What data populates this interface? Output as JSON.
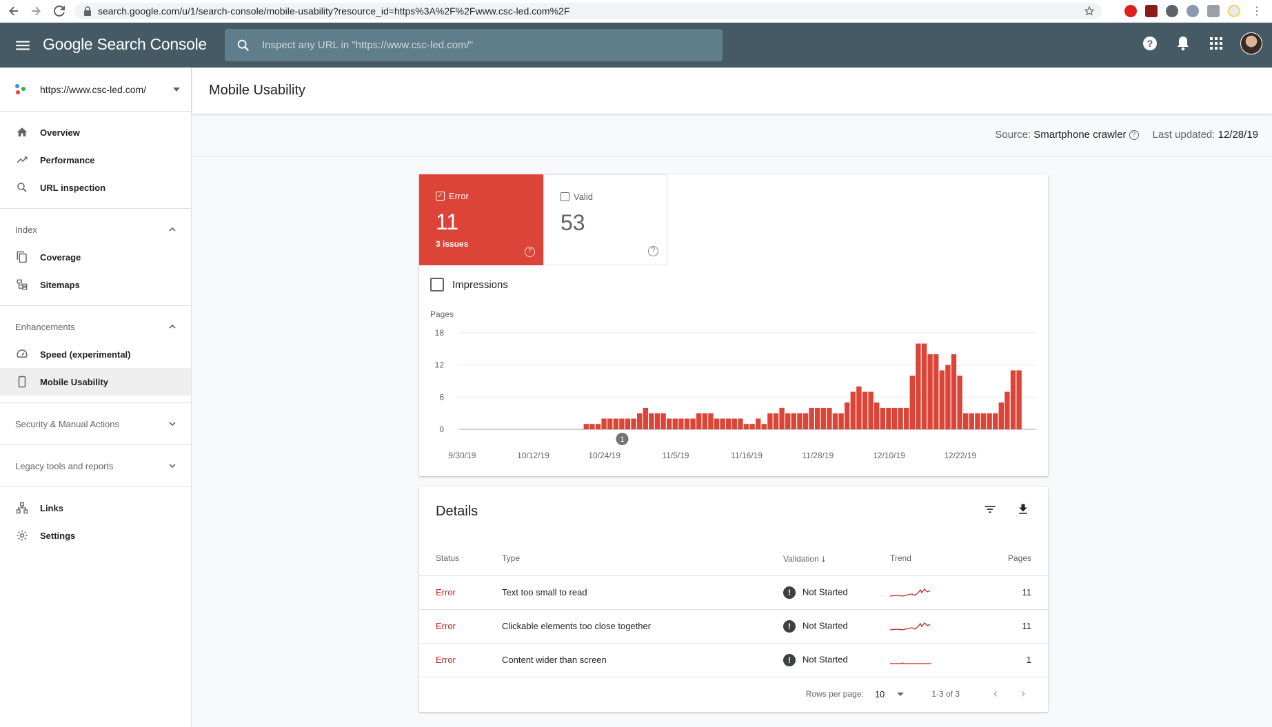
{
  "browser": {
    "url": "search.google.com/u/1/search-console/mobile-usability?resource_id=https%3A%2F%2Fwww.csc-led.com%2F"
  },
  "header": {
    "brand": "Google Search Console",
    "search_placeholder": "Inspect any URL in \"https://www.csc-led.com/\""
  },
  "sidebar": {
    "property": "https://www.csc-led.com/",
    "top_items": [
      {
        "label": "Overview",
        "icon": "home-icon"
      },
      {
        "label": "Performance",
        "icon": "trending-up-icon"
      },
      {
        "label": "URL inspection",
        "icon": "search-icon"
      }
    ],
    "index_label": "Index",
    "index_items": [
      {
        "label": "Coverage",
        "icon": "file-copy-icon"
      },
      {
        "label": "Sitemaps",
        "icon": "sitemap-icon"
      }
    ],
    "enhancements_label": "Enhancements",
    "enhancement_items": [
      {
        "label": "Speed (experimental)",
        "icon": "speedometer-icon"
      },
      {
        "label": "Mobile Usability",
        "icon": "smartphone-icon"
      }
    ],
    "security_label": "Security & Manual Actions",
    "legacy_label": "Legacy tools and reports",
    "bottom_items": [
      {
        "label": "Links",
        "icon": "links-icon"
      },
      {
        "label": "Settings",
        "icon": "gear-icon"
      }
    ]
  },
  "page": {
    "title": "Mobile Usability",
    "source_label": "Source:",
    "source_value": "Smartphone crawler",
    "updated_label": "Last updated:",
    "updated_value": "12/28/19"
  },
  "summary": {
    "error_label": "Error",
    "error_count": "11",
    "error_sub": "3 issues",
    "valid_label": "Valid",
    "valid_count": "53",
    "impressions_label": "Impressions",
    "colors": {
      "error": "#db4437"
    }
  },
  "chart_data": {
    "type": "bar",
    "ylabel": "Pages",
    "ylim": [
      0,
      18
    ],
    "yticks": [
      0,
      6,
      12,
      18
    ],
    "xtick_labels": [
      "9/30/19",
      "10/12/19",
      "10/24/19",
      "11/5/19",
      "11/16/19",
      "11/28/19",
      "12/10/19",
      "12/22/19"
    ],
    "annotation": {
      "label": "1",
      "at_index": 27
    },
    "color": "#db4437",
    "values": [
      0,
      0,
      0,
      0,
      0,
      0,
      0,
      0,
      0,
      0,
      0,
      0,
      0,
      0,
      0,
      0,
      0,
      0,
      0,
      0,
      0,
      1,
      1,
      1,
      2,
      2,
      2,
      2,
      2,
      2,
      3,
      4,
      3,
      3,
      3,
      2,
      2,
      2,
      2,
      2,
      3,
      3,
      3,
      2,
      2,
      2,
      2,
      2,
      1,
      1,
      2,
      1,
      3,
      3,
      4,
      3,
      3,
      3,
      3,
      4,
      4,
      4,
      4,
      3,
      3,
      5,
      7,
      8,
      7,
      7,
      5,
      4,
      4,
      4,
      4,
      4,
      10,
      16,
      16,
      14,
      14,
      11,
      12,
      14,
      10,
      3,
      3,
      3,
      3,
      3,
      3,
      5,
      7,
      11,
      11
    ]
  },
  "details": {
    "title": "Details",
    "columns": [
      "Status",
      "Type",
      "Validation",
      "Trend",
      "Pages"
    ],
    "rows": [
      {
        "status": "Error",
        "type": "Text too small to read",
        "validation": "Not Started",
        "pages": "11"
      },
      {
        "status": "Error",
        "type": "Clickable elements too close together",
        "validation": "Not Started",
        "pages": "11"
      },
      {
        "status": "Error",
        "type": "Content wider than screen",
        "validation": "Not Started",
        "pages": "1"
      }
    ],
    "rows_per_page_label": "Rows per page:",
    "rows_per_page": "10",
    "range": "1-3 of 3"
  }
}
